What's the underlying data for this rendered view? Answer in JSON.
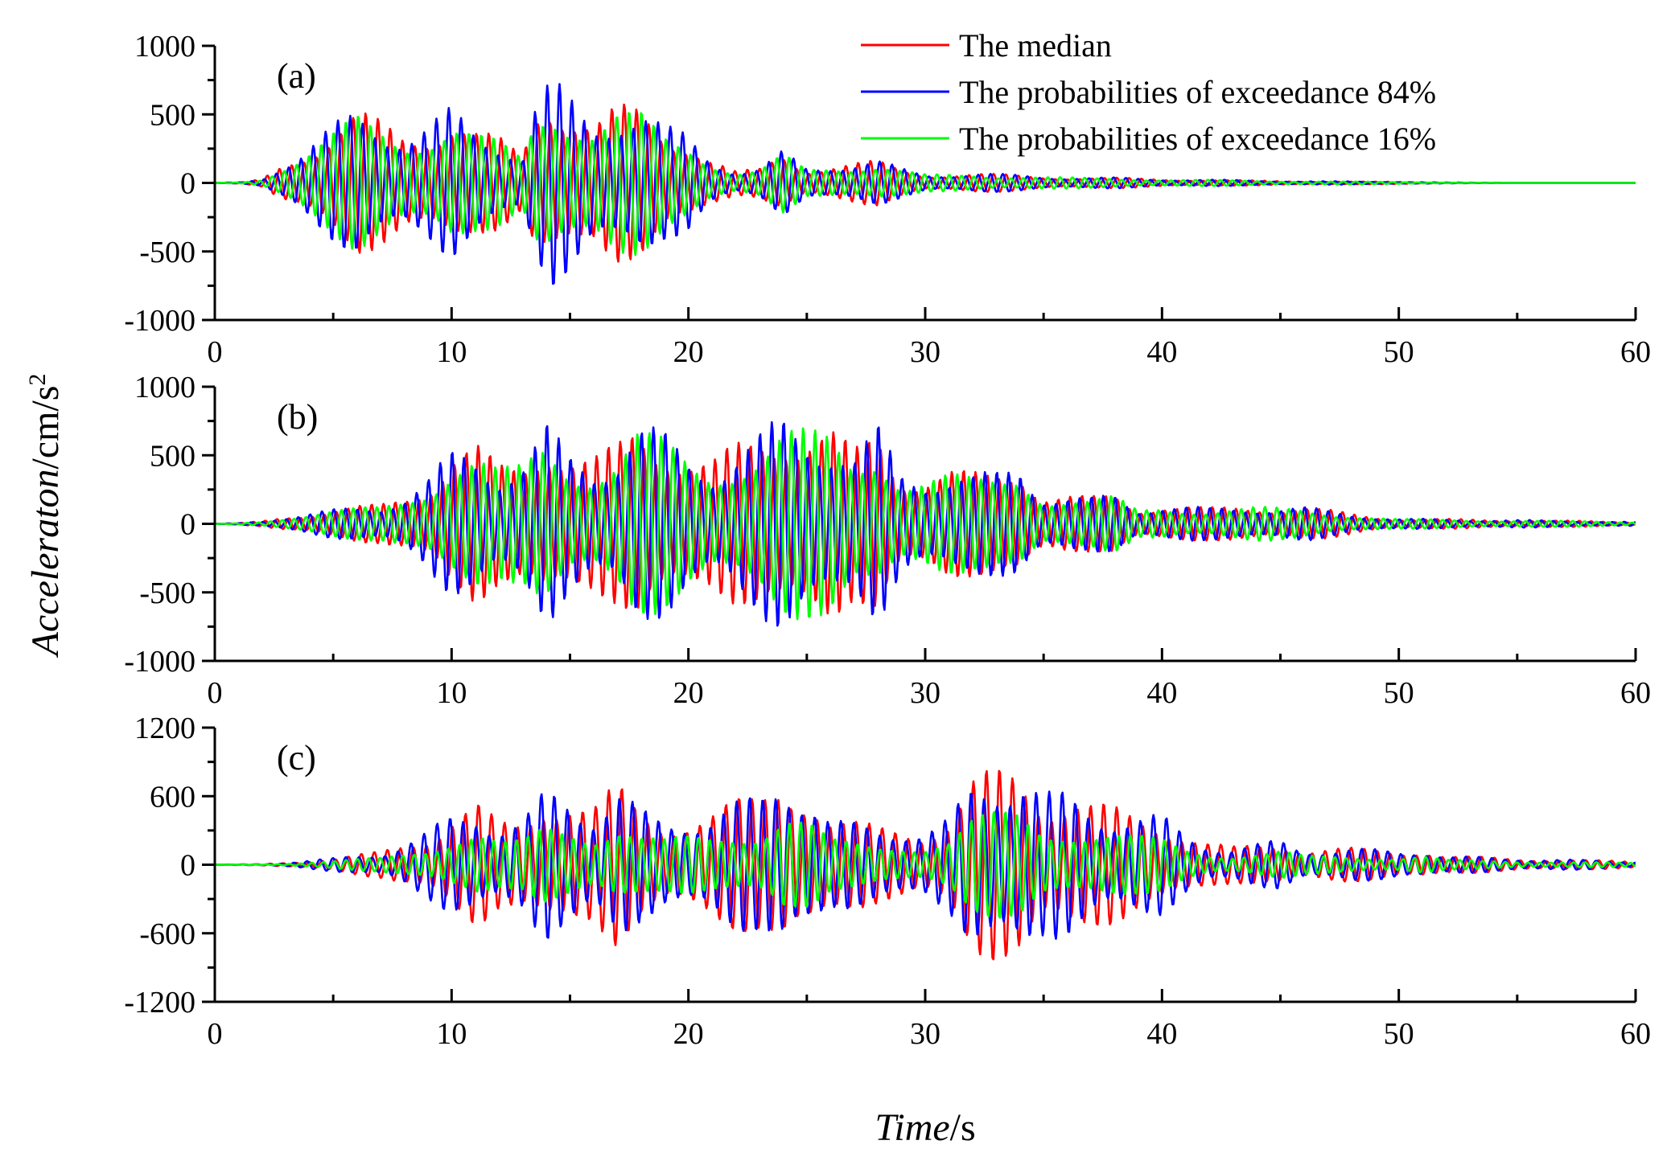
{
  "chart_data": {
    "type": "line",
    "y_axis_title": {
      "italic": "Acceleraton",
      "unit": "/cm/s",
      "sup": "2"
    },
    "x_axis_title": {
      "italic": "Time",
      "unit": "/s"
    },
    "legend": [
      {
        "name": "The median",
        "color": "#ff0000"
      },
      {
        "name": "The probabilities of exceedance 84%",
        "color": "#0000ff"
      },
      {
        "name": "The probabilities of exceedance 16%",
        "color": "#00ff00"
      }
    ],
    "xlim": [
      0,
      60
    ],
    "x_ticks": [
      0,
      10,
      20,
      30,
      40,
      50,
      60
    ],
    "x_tick_labels": [
      "0",
      "10",
      "20",
      "30",
      "40",
      "50",
      "60"
    ],
    "sample_step_s": 0.04,
    "panels": [
      {
        "label": "(a)",
        "ylim": [
          -1000,
          1000
        ],
        "y_ticks": [
          1000,
          500,
          0,
          -500,
          -1000
        ],
        "y_tick_labels": [
          "1000",
          "500",
          "0",
          "-500",
          "-1000"
        ],
        "envelope": [
          [
            0,
            0
          ],
          [
            1.2,
            5
          ],
          [
            2,
            30
          ],
          [
            3,
            180
          ],
          [
            4,
            300
          ],
          [
            5,
            430
          ],
          [
            6,
            560
          ],
          [
            7,
            480
          ],
          [
            8,
            400
          ],
          [
            9,
            450
          ],
          [
            10,
            560
          ],
          [
            11,
            420
          ],
          [
            12,
            350
          ],
          [
            13,
            230
          ],
          [
            13.5,
            620
          ],
          [
            14.2,
            780
          ],
          [
            15,
            650
          ],
          [
            16,
            500
          ],
          [
            17,
            600
          ],
          [
            18,
            580
          ],
          [
            19,
            420
          ],
          [
            20,
            380
          ],
          [
            21,
            200
          ],
          [
            22,
            90
          ],
          [
            23,
            110
          ],
          [
            24,
            240
          ],
          [
            25,
            120
          ],
          [
            26,
            150
          ],
          [
            28,
            170
          ],
          [
            29,
            110
          ],
          [
            30,
            70
          ],
          [
            32,
            75
          ],
          [
            34,
            60
          ],
          [
            36,
            45
          ],
          [
            38,
            40
          ],
          [
            40,
            30
          ],
          [
            42,
            25
          ],
          [
            45,
            15
          ],
          [
            50,
            8
          ],
          [
            52,
            3
          ],
          [
            55,
            0
          ],
          [
            60,
            0
          ]
        ],
        "series": [
          {
            "name": "The median",
            "color": "#ff0000",
            "period_s": 0.52,
            "phase": 0.0,
            "scale": 0.97,
            "mod_period_s": 5.3
          },
          {
            "name": "The probabilities of exceedance 84%",
            "color": "#0000ff",
            "period_s": 0.52,
            "phase": 0.25,
            "scale": 1.0,
            "mod_period_s": 4.7
          },
          {
            "name": "The probabilities of exceedance 16%",
            "color": "#00ff00",
            "period_s": 0.52,
            "phase": 0.6,
            "scale": 0.9,
            "mod_period_s": 6.1
          }
        ]
      },
      {
        "label": "(b)",
        "ylim": [
          -1000,
          1000
        ],
        "y_ticks": [
          1000,
          500,
          0,
          -500,
          -1000
        ],
        "y_tick_labels": [
          "1000",
          "500",
          "0",
          "-500",
          "-1000"
        ],
        "envelope": [
          [
            0,
            0
          ],
          [
            1,
            5
          ],
          [
            2,
            20
          ],
          [
            3,
            60
          ],
          [
            5,
            110
          ],
          [
            7,
            150
          ],
          [
            8,
            230
          ],
          [
            9,
            350
          ],
          [
            10,
            560
          ],
          [
            11,
            600
          ],
          [
            12,
            450
          ],
          [
            13,
            500
          ],
          [
            14,
            760
          ],
          [
            15,
            560
          ],
          [
            16,
            500
          ],
          [
            17,
            600
          ],
          [
            17.8,
            800
          ],
          [
            19,
            700
          ],
          [
            20,
            550
          ],
          [
            21,
            480
          ],
          [
            22,
            600
          ],
          [
            23,
            700
          ],
          [
            24,
            830
          ],
          [
            25,
            780
          ],
          [
            26,
            740
          ],
          [
            27,
            550
          ],
          [
            28,
            750
          ],
          [
            29,
            420
          ],
          [
            30,
            400
          ],
          [
            31,
            420
          ],
          [
            32,
            380
          ],
          [
            33,
            400
          ],
          [
            34,
            500
          ],
          [
            35,
            250
          ],
          [
            37,
            200
          ],
          [
            38,
            230
          ],
          [
            39,
            120
          ],
          [
            40,
            160
          ],
          [
            42,
            120
          ],
          [
            44,
            140
          ],
          [
            46,
            130
          ],
          [
            48,
            80
          ],
          [
            50,
            40
          ],
          [
            55,
            30
          ],
          [
            60,
            15
          ]
        ],
        "series": [
          {
            "name": "The median",
            "color": "#ff0000",
            "period_s": 0.5,
            "phase": 0.0,
            "scale": 1.0,
            "mod_period_s": 5.1
          },
          {
            "name": "The probabilities of exceedance 84%",
            "color": "#0000ff",
            "period_s": 0.5,
            "phase": 0.2,
            "scale": 0.97,
            "mod_period_s": 4.6
          },
          {
            "name": "The probabilities of exceedance 16%",
            "color": "#00ff00",
            "period_s": 0.5,
            "phase": 0.55,
            "scale": 0.9,
            "mod_period_s": 6.4
          }
        ]
      },
      {
        "label": "(c)",
        "ylim": [
          -1200,
          1200
        ],
        "y_ticks": [
          1200,
          600,
          0,
          -600,
          -1200
        ],
        "y_tick_labels": [
          "1200",
          "600",
          "0",
          "-600",
          "-1200"
        ],
        "envelope": [
          [
            0,
            0
          ],
          [
            2,
            5
          ],
          [
            3,
            20
          ],
          [
            5,
            60
          ],
          [
            7,
            120
          ],
          [
            8,
            200
          ],
          [
            9,
            300
          ],
          [
            10,
            480
          ],
          [
            11,
            580
          ],
          [
            12,
            380
          ],
          [
            13,
            400
          ],
          [
            14,
            700
          ],
          [
            15,
            680
          ],
          [
            16,
            550
          ],
          [
            17,
            720
          ],
          [
            18,
            500
          ],
          [
            19,
            420
          ],
          [
            20,
            480
          ],
          [
            21,
            500
          ],
          [
            22,
            580
          ],
          [
            23,
            620
          ],
          [
            24,
            900
          ],
          [
            25,
            750
          ],
          [
            26,
            420
          ],
          [
            27,
            380
          ],
          [
            28,
            360
          ],
          [
            29,
            380
          ],
          [
            30,
            330
          ],
          [
            31,
            420
          ],
          [
            32,
            750
          ],
          [
            33,
            880
          ],
          [
            34,
            960
          ],
          [
            35,
            680
          ],
          [
            36,
            650
          ],
          [
            37,
            560
          ],
          [
            38,
            520
          ],
          [
            39,
            470
          ],
          [
            40,
            450
          ],
          [
            41,
            300
          ],
          [
            42,
            200
          ],
          [
            43,
            160
          ],
          [
            44,
            190
          ],
          [
            45,
            230
          ],
          [
            46,
            150
          ],
          [
            48,
            150
          ],
          [
            50,
            130
          ],
          [
            51,
            150
          ],
          [
            52,
            80
          ],
          [
            55,
            60
          ],
          [
            60,
            30
          ]
        ],
        "series": [
          {
            "name": "The median",
            "color": "#ff0000",
            "period_s": 0.55,
            "phase": 0.0,
            "scale": 1.0,
            "mod_period_s": 5.2
          },
          {
            "name": "The probabilities of exceedance 84%",
            "color": "#0000ff",
            "period_s": 0.55,
            "phase": 0.18,
            "scale": 0.98,
            "mod_period_s": 4.4
          },
          {
            "name": "The probabilities of exceedance 16%",
            "color": "#00ff00",
            "period_s": 0.48,
            "phase": 0.7,
            "scale": 0.55,
            "mod_period_s": 6.6
          }
        ]
      }
    ]
  }
}
